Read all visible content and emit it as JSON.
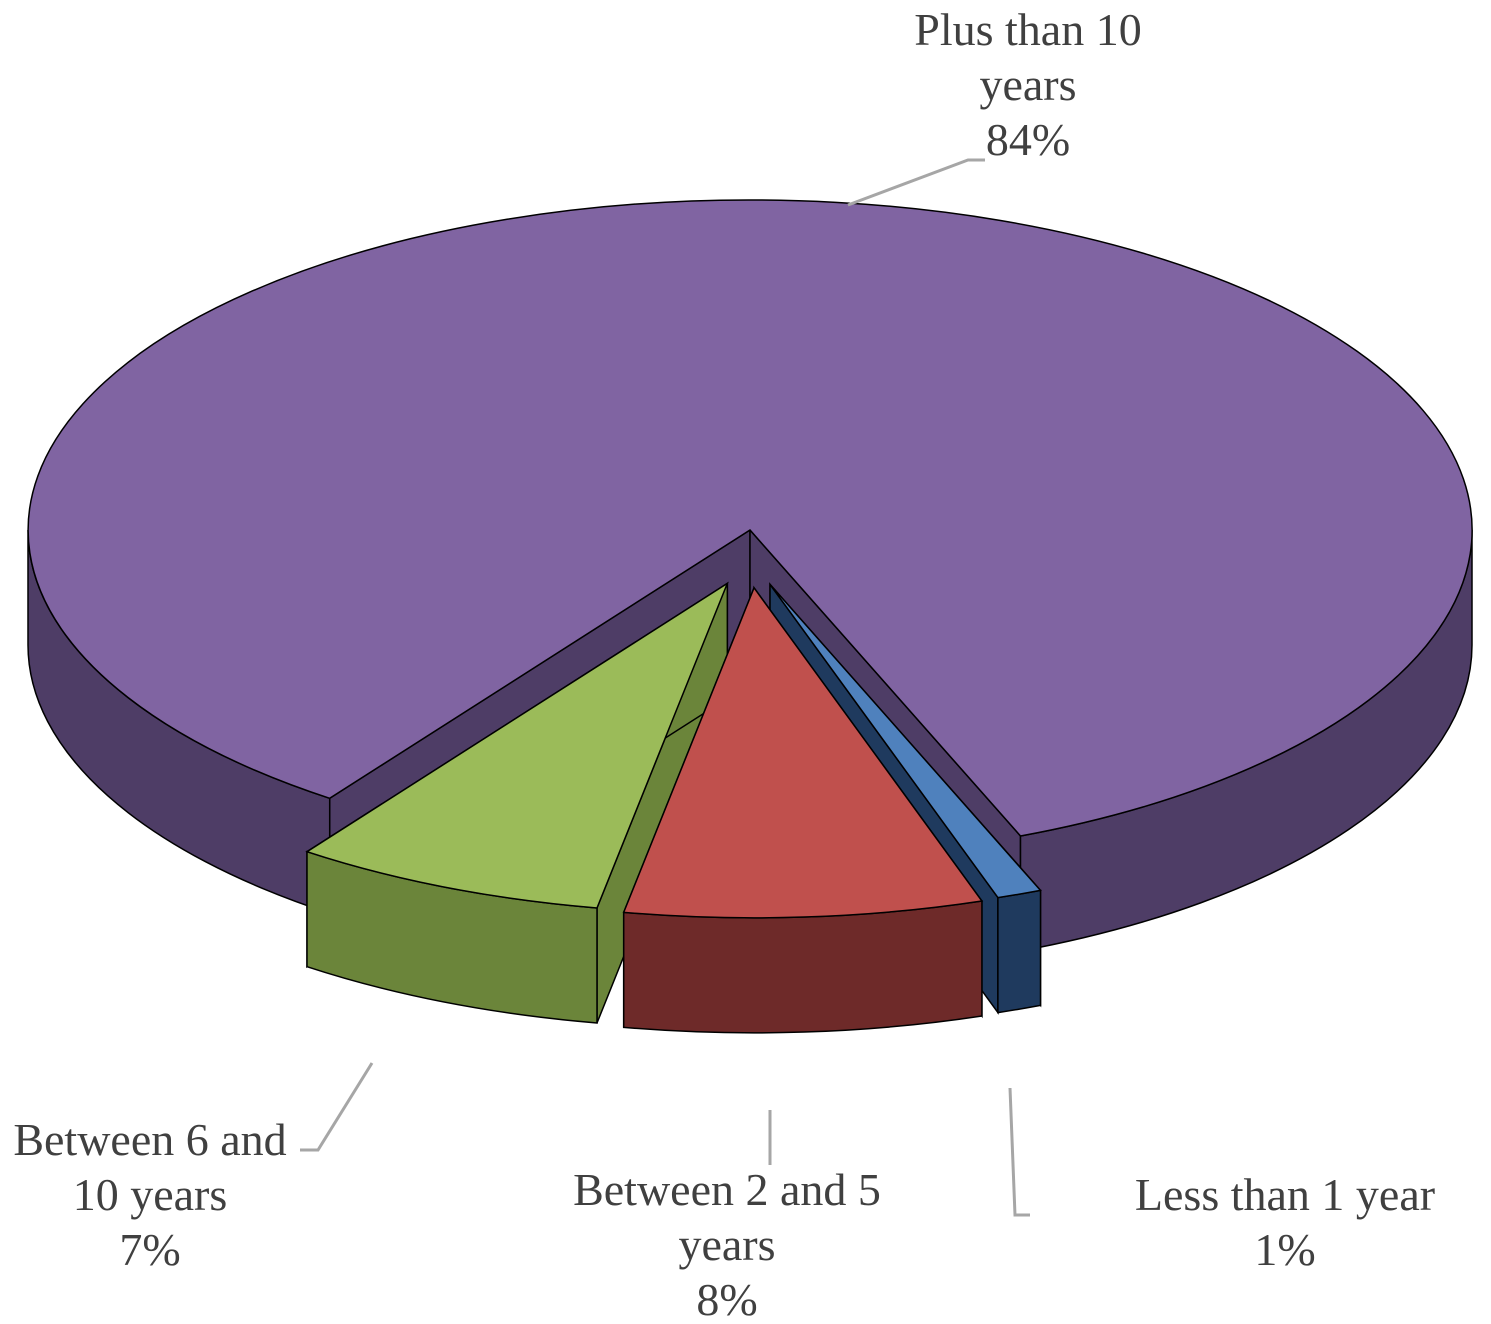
{
  "chart_data": {
    "type": "pie3d",
    "categories": [
      "Less than 1 year",
      "Between 2 and 5 years",
      "Between 6 and 10 years",
      "Plus than 10 years"
    ],
    "values": [
      1,
      8,
      7,
      84
    ],
    "value_labels": [
      "1%",
      "8%",
      "7%",
      "84%"
    ],
    "colors": [
      "#4f81bd",
      "#c0504d",
      "#9bbb59",
      "#8064a2"
    ],
    "side_colors": [
      "#1f3a5e",
      "#6e2a29",
      "#6b853a",
      "#4e3d66"
    ]
  }
}
